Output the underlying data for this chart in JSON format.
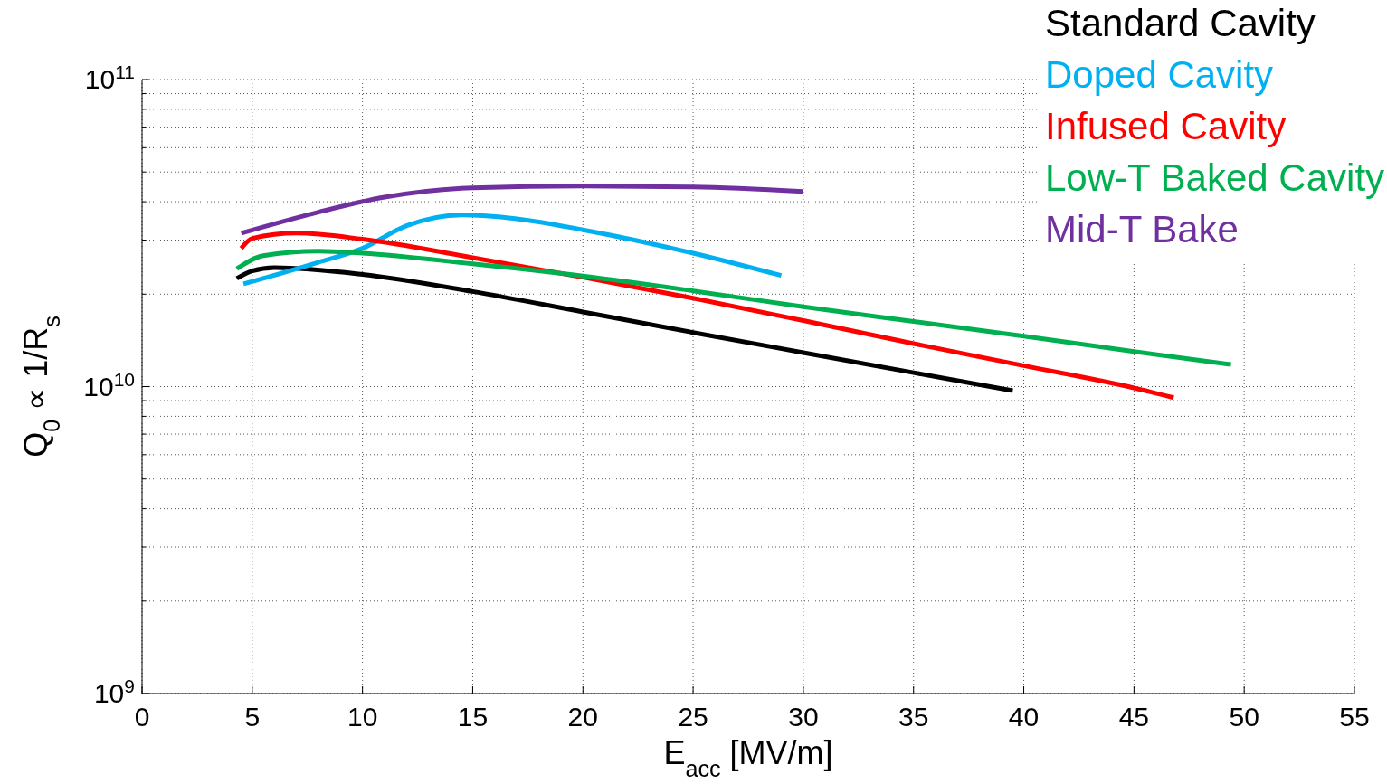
{
  "chart_data": {
    "type": "line",
    "xlabel": "E$_{acc}$ [MV/m]",
    "ylabel": "Q$_{0}$ ∝ 1/R$_{s}$",
    "log": "y",
    "grid": true,
    "legend": "top right",
    "line_style": "solid",
    "marker": "none",
    "xlim": [
      0,
      55
    ],
    "xticks": [
      0,
      5,
      10,
      15,
      20,
      25,
      30,
      35,
      40,
      45,
      50,
      55
    ],
    "ylim": [
      1000000000,
      100000000000
    ],
    "yticks": [
      {
        "value": 1000000000,
        "label": "10$^{9}$"
      },
      {
        "value": 2000000000,
        "label": null
      },
      {
        "value": 3000000000,
        "label": null
      },
      {
        "value": 4000000000,
        "label": null
      },
      {
        "value": 5000000000,
        "label": null
      },
      {
        "value": 6000000000,
        "label": null
      },
      {
        "value": 7000000000,
        "label": null
      },
      {
        "value": 8000000000,
        "label": null
      },
      {
        "value": 9000000000,
        "label": null
      },
      {
        "value": 10000000000,
        "label": "10$^{10}$"
      },
      {
        "value": 20000000000,
        "label": null
      },
      {
        "value": 30000000000,
        "label": null
      },
      {
        "value": 40000000000,
        "label": null
      },
      {
        "value": 50000000000,
        "label": null
      },
      {
        "value": 60000000000,
        "label": null
      },
      {
        "value": 70000000000,
        "label": null
      },
      {
        "value": 80000000000,
        "label": null
      },
      {
        "value": 90000000000,
        "label": null
      },
      {
        "value": 100000000000,
        "label": "10$^{11}$"
      }
    ],
    "series": [
      {
        "name": "Standard Cavity",
        "color": "#000000",
        "x": [
          4.3,
          5,
          6,
          10,
          15,
          20,
          25,
          30,
          35,
          39.5
        ],
        "values": [
          22500000000,
          23800000000,
          24400000000,
          23200000000,
          20400000000,
          17500000000,
          15000000000,
          12900000000,
          11100000000,
          9700000000
        ]
      },
      {
        "name": "Doped Cavity",
        "color": "#00b0f0",
        "x": [
          4.6,
          8,
          10,
          12,
          14.5,
          17,
          20,
          25,
          29
        ],
        "values": [
          21600000000,
          25400000000,
          28200000000,
          33400000000,
          36200000000,
          35200000000,
          32400000000,
          27200000000,
          23000000000
        ]
      },
      {
        "name": "Infused Cavity",
        "color": "#ff0000",
        "x": [
          4.5,
          5,
          7,
          10,
          15,
          20,
          25,
          30,
          35,
          40,
          45,
          46.8
        ],
        "values": [
          28200000000,
          30400000000,
          31600000000,
          30200000000,
          26300000000,
          22700000000,
          19400000000,
          16400000000,
          13800000000,
          11700000000,
          9900000000,
          9200000000
        ]
      },
      {
        "name": "Low-T Baked Cavity",
        "color": "#00b050",
        "x": [
          4.3,
          5.5,
          8,
          10,
          15,
          20,
          25,
          30,
          35,
          40,
          45,
          49.4
        ],
        "values": [
          24200000000,
          26700000000,
          27600000000,
          27200000000,
          25100000000,
          22900000000,
          20500000000,
          18200000000,
          16300000000,
          14600000000,
          13000000000,
          11800000000
        ]
      },
      {
        "name": "Mid-T Bake",
        "color": "#7030a0",
        "x": [
          4.5,
          8,
          11,
          15,
          20,
          25,
          30
        ],
        "values": [
          31600000000,
          37000000000,
          41400000000,
          44400000000,
          45000000000,
          44700000000,
          43200000000
        ]
      }
    ]
  }
}
